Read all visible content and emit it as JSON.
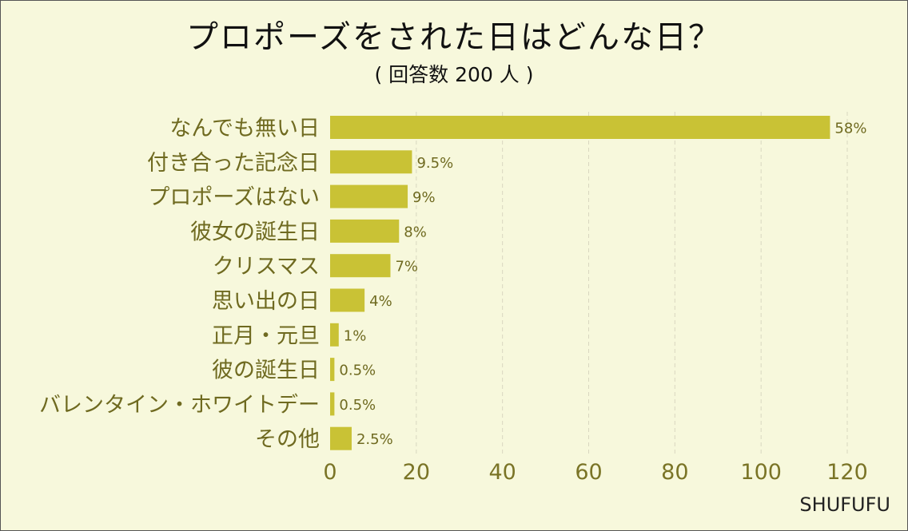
{
  "title": "プロポーズをされた日はどんな日？",
  "subtitle": "( 回答数 200 人 )",
  "brand": "SHUFUFU",
  "colors": {
    "bar": "#c9c235",
    "grid": "#d9d7c0",
    "background": "#f7f8dc",
    "label": "#6f6a20"
  },
  "chart_data": {
    "type": "bar",
    "orientation": "horizontal",
    "categories": [
      "なんでも無い日",
      "付き合った記念日",
      "プロポーズはない",
      "彼女の誕生日",
      "クリスマス",
      "思い出の日",
      "正月・元旦",
      "彼の誕生日",
      "バレンタイン・ホワイトデー",
      "その他"
    ],
    "values": [
      116,
      19,
      18,
      16,
      14,
      8,
      2,
      1,
      1,
      5
    ],
    "data_labels": [
      "58%",
      "9.5%",
      "9%",
      "8%",
      "7%",
      "4%",
      "1%",
      "0.5%",
      "0.5%",
      "2.5%"
    ],
    "xlim": [
      0,
      120
    ],
    "xticks": [
      0,
      20,
      40,
      60,
      80,
      100,
      120
    ],
    "grid": "vertical dashed"
  }
}
